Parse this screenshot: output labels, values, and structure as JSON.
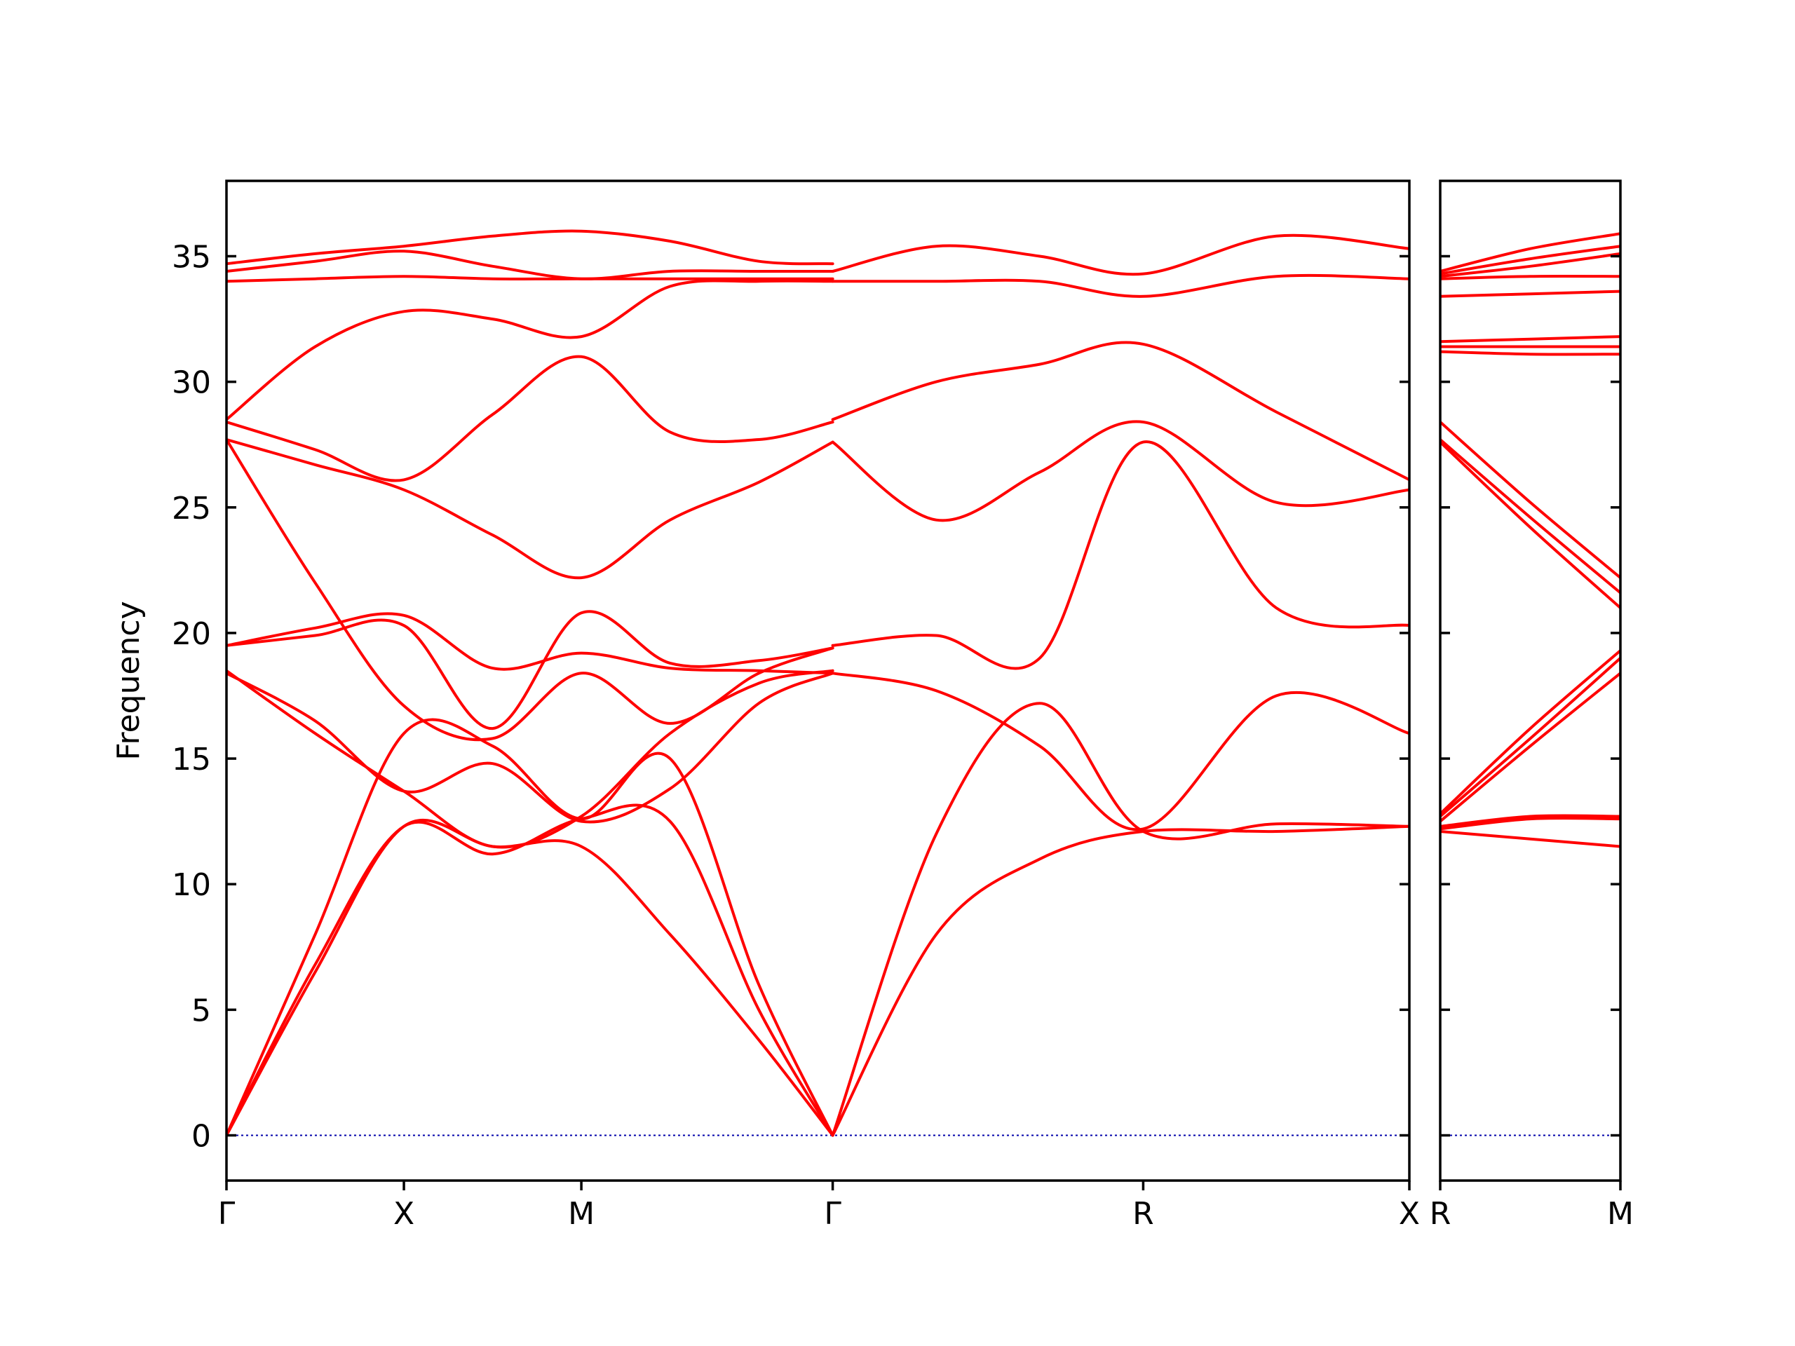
{
  "chart_data": {
    "type": "line",
    "title": "",
    "ylabel": "Frequency",
    "ylim": [
      -1.8,
      38
    ],
    "yticks": [
      0,
      5,
      10,
      15,
      20,
      25,
      30,
      35
    ],
    "grid": false,
    "band_color": "#ff0000",
    "zero_line_color": "#0000aa",
    "panels": [
      {
        "name": "left",
        "xlim": [
          0,
          8
        ],
        "x_ticks": [
          {
            "label": "Γ",
            "x": 0
          },
          {
            "label": "X",
            "x": 1.2
          },
          {
            "label": "M",
            "x": 2.4
          },
          {
            "label": "Γ",
            "x": 4.1
          },
          {
            "label": "R",
            "x": 6.2
          },
          {
            "label": "X",
            "x": 8
          }
        ],
        "series": [
          {
            "x": [
              0,
              0.6,
              1.2,
              1.8,
              2.4,
              3.0,
              3.6,
              4.1
            ],
            "values": [
              0,
              6.5,
              12.3,
              11.5,
              11.5,
              8.0,
              3.8,
              0
            ]
          },
          {
            "x": [
              0,
              0.6,
              1.2,
              1.8,
              2.4,
              3.0,
              3.6,
              4.1
            ],
            "values": [
              0,
              6.8,
              12.3,
              11.2,
              12.6,
              12.5,
              5.0,
              0
            ]
          },
          {
            "x": [
              0,
              0.6,
              1.2,
              1.8,
              2.4,
              3.0,
              3.6,
              4.1
            ],
            "values": [
              0,
              8.0,
              16.0,
              15.5,
              12.6,
              15.0,
              6.0,
              0
            ]
          },
          {
            "x": [
              0,
              0.6,
              1.2,
              1.8,
              2.4,
              3.0,
              3.6,
              4.1
            ],
            "values": [
              27.7,
              22.0,
              17.1,
              15.8,
              18.4,
              16.4,
              18.4,
              19.4
            ]
          },
          {
            "x": [
              0,
              0.6,
              1.2,
              1.8,
              2.4,
              3.0,
              3.6,
              4.1
            ],
            "values": [
              18.4,
              16.5,
              13.7,
              14.8,
              12.5,
              13.8,
              17.2,
              18.4
            ]
          },
          {
            "x": [
              0,
              0.6,
              1.2,
              1.8,
              2.4,
              3.0,
              3.6,
              4.1
            ],
            "values": [
              18.5,
              16.0,
              13.7,
              11.5,
              12.7,
              16.0,
              18.0,
              18.5
            ]
          },
          {
            "x": [
              0,
              0.6,
              1.2,
              1.8,
              2.4,
              3.0,
              3.6,
              4.1
            ],
            "values": [
              19.5,
              19.9,
              20.3,
              16.2,
              20.8,
              18.8,
              18.9,
              19.4
            ]
          },
          {
            "x": [
              0,
              0.6,
              1.2,
              1.8,
              2.4,
              3.0,
              3.6,
              4.1
            ],
            "values": [
              19.5,
              20.2,
              20.7,
              18.6,
              19.2,
              18.6,
              18.5,
              18.4
            ]
          },
          {
            "x": [
              0,
              0.6,
              1.2,
              1.8,
              2.4,
              3.0,
              3.6,
              4.1
            ],
            "values": [
              27.7,
              26.7,
              25.7,
              23.9,
              22.2,
              24.5,
              26.0,
              27.6
            ]
          },
          {
            "x": [
              0,
              0.6,
              1.2,
              1.8,
              2.4,
              3.0,
              3.6,
              4.1
            ],
            "values": [
              28.4,
              27.3,
              26.1,
              28.7,
              31.0,
              28.0,
              27.7,
              28.4
            ]
          },
          {
            "x": [
              0,
              0.6,
              1.2,
              1.8,
              2.4,
              3.0,
              3.6,
              4.1
            ],
            "values": [
              28.5,
              31.4,
              32.8,
              32.5,
              31.8,
              33.8,
              34.0,
              34.0
            ]
          },
          {
            "x": [
              0,
              0.6,
              1.2,
              1.8,
              2.4,
              3.0,
              3.6,
              4.1
            ],
            "values": [
              34.0,
              34.1,
              34.2,
              34.1,
              34.1,
              34.1,
              34.1,
              34.1
            ]
          },
          {
            "x": [
              0,
              0.6,
              1.2,
              1.8,
              2.4,
              3.0,
              3.6,
              4.1
            ],
            "values": [
              34.4,
              34.8,
              35.2,
              34.6,
              34.1,
              34.4,
              34.4,
              34.4
            ]
          },
          {
            "x": [
              0,
              0.6,
              1.2,
              1.8,
              2.4,
              3.0,
              3.6,
              4.1
            ],
            "values": [
              34.7,
              35.1,
              35.4,
              35.8,
              36.0,
              35.6,
              34.8,
              34.7
            ]
          },
          {
            "x": [
              4.1,
              4.8,
              5.5,
              6.2,
              7.1,
              8.0
            ],
            "values": [
              0,
              8.0,
              11.0,
              12.1,
              12.1,
              12.3
            ]
          },
          {
            "x": [
              4.1,
              4.8,
              5.5,
              6.2,
              7.1,
              8.0
            ],
            "values": [
              0,
              12.0,
              17.2,
              12.1,
              12.4,
              12.3
            ]
          },
          {
            "x": [
              4.1,
              4.8,
              5.5,
              6.2,
              7.1,
              8.0
            ],
            "values": [
              18.4,
              17.7,
              15.5,
              12.2,
              17.5,
              16.0
            ]
          },
          {
            "x": [
              4.1,
              4.8,
              5.5,
              6.2,
              7.1,
              8.0
            ],
            "values": [
              19.5,
              19.9,
              19.0,
              27.6,
              21.0,
              20.3
            ]
          },
          {
            "x": [
              4.1,
              4.8,
              5.5,
              6.2,
              7.1,
              8.0
            ],
            "values": [
              27.6,
              24.5,
              26.4,
              28.4,
              25.2,
              25.7
            ]
          },
          {
            "x": [
              4.1,
              4.8,
              5.5,
              6.2,
              7.1,
              8.0
            ],
            "values": [
              28.5,
              30.0,
              30.7,
              31.5,
              28.8,
              26.1
            ]
          },
          {
            "x": [
              4.1,
              4.8,
              5.5,
              6.2,
              7.1,
              8.0
            ],
            "values": [
              34.0,
              34.0,
              34.0,
              33.4,
              34.2,
              34.1
            ]
          },
          {
            "x": [
              4.1,
              4.8,
              5.5,
              6.2,
              7.1,
              8.0
            ],
            "values": [
              34.4,
              35.4,
              35.0,
              34.3,
              35.8,
              35.3
            ]
          }
        ]
      },
      {
        "name": "right",
        "xlim": [
          0,
          1
        ],
        "x_ticks": [
          {
            "label": "R",
            "x": 0
          },
          {
            "label": "M",
            "x": 1
          }
        ],
        "series": [
          {
            "x": [
              0,
              0.5,
              1
            ],
            "values": [
              12.1,
              11.8,
              11.5
            ]
          },
          {
            "x": [
              0,
              0.5,
              1
            ],
            "values": [
              12.2,
              12.6,
              12.6
            ]
          },
          {
            "x": [
              0,
              0.5,
              1
            ],
            "values": [
              12.3,
              12.7,
              12.7
            ]
          },
          {
            "x": [
              0,
              0.5,
              1
            ],
            "values": [
              12.5,
              15.5,
              18.4
            ]
          },
          {
            "x": [
              0,
              0.5,
              1
            ],
            "values": [
              12.7,
              15.8,
              19.0
            ]
          },
          {
            "x": [
              0,
              0.5,
              1
            ],
            "values": [
              12.8,
              16.2,
              19.3
            ]
          },
          {
            "x": [
              0,
              0.5,
              1
            ],
            "values": [
              27.6,
              24.2,
              21.0
            ]
          },
          {
            "x": [
              0,
              0.5,
              1
            ],
            "values": [
              27.7,
              24.6,
              21.6
            ]
          },
          {
            "x": [
              0,
              0.5,
              1
            ],
            "values": [
              28.4,
              25.2,
              22.2
            ]
          },
          {
            "x": [
              0,
              0.5,
              1
            ],
            "values": [
              31.2,
              31.1,
              31.1
            ]
          },
          {
            "x": [
              0,
              0.5,
              1
            ],
            "values": [
              31.4,
              31.4,
              31.4
            ]
          },
          {
            "x": [
              0,
              0.5,
              1
            ],
            "values": [
              31.6,
              31.7,
              31.8
            ]
          },
          {
            "x": [
              0,
              0.5,
              1
            ],
            "values": [
              33.4,
              33.5,
              33.6
            ]
          },
          {
            "x": [
              0,
              0.5,
              1
            ],
            "values": [
              34.1,
              34.2,
              34.2
            ]
          },
          {
            "x": [
              0,
              0.5,
              1
            ],
            "values": [
              34.2,
              34.6,
              35.1
            ]
          },
          {
            "x": [
              0,
              0.5,
              1
            ],
            "values": [
              34.3,
              34.9,
              35.4
            ]
          },
          {
            "x": [
              0,
              0.5,
              1
            ],
            "values": [
              34.4,
              35.3,
              35.9
            ]
          }
        ]
      }
    ]
  }
}
